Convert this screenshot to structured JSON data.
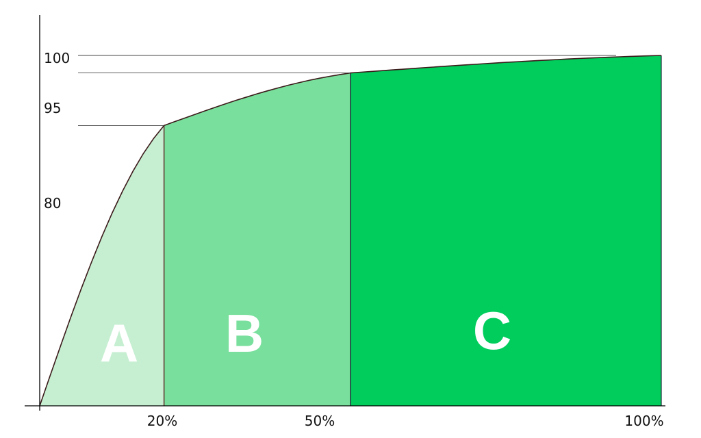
{
  "chart_data": {
    "type": "area",
    "title": "",
    "xlabel": "",
    "ylabel": "",
    "x_ticks": [
      "20%",
      "50%",
      "100%"
    ],
    "y_ticks": [
      "80",
      "95",
      "100"
    ],
    "xlim": [
      0,
      100
    ],
    "ylim": [
      0,
      100
    ],
    "curve": {
      "x": [
        0,
        20,
        50,
        100
      ],
      "y": [
        0,
        80,
        95,
        100
      ]
    },
    "zones": [
      {
        "label": "A",
        "x_start": 0,
        "x_end": 20,
        "color": "#c6efd2"
      },
      {
        "label": "B",
        "x_start": 20,
        "x_end": 50,
        "color": "#79df9c"
      },
      {
        "label": "C",
        "x_start": 50,
        "x_end": 100,
        "color": "#01cd5c"
      }
    ],
    "grid": false,
    "reference_lines_y": [
      80,
      95,
      100
    ]
  }
}
